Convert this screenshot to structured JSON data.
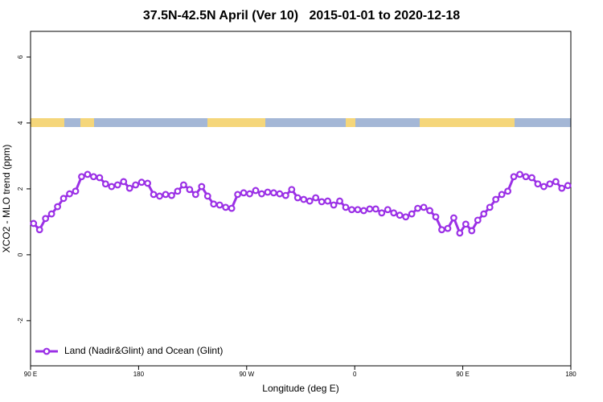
{
  "chart_data": {
    "type": "line",
    "title": "37.5N-42.5N April (Ver 10)   2015-01-01 to 2020-12-18",
    "x_label": "Longitude (deg E)",
    "y_label": "XCO2 - MLO trend (ppm)",
    "x": [
      92.5,
      97.5,
      102.5,
      107.5,
      112.5,
      117.5,
      122.5,
      127.5,
      132.5,
      137.5,
      142.5,
      147.5,
      152.5,
      157.5,
      162.5,
      167.5,
      172.5,
      177.5,
      182.5,
      187.5,
      192.5,
      197.5,
      202.5,
      207.5,
      212.5,
      217.5,
      222.5,
      227.5,
      232.5,
      237.5,
      242.5,
      247.5,
      252.5,
      257.5,
      262.5,
      267.5,
      272.5,
      277.5,
      282.5,
      287.5,
      292.5,
      297.5,
      302.5,
      307.5,
      312.5,
      317.5,
      322.5,
      327.5,
      332.5,
      337.5,
      342.5,
      347.5,
      352.5,
      357.5,
      362.5,
      367.5,
      372.5,
      377.5,
      382.5,
      387.5,
      392.5,
      397.5,
      402.5,
      407.5,
      412.5,
      417.5,
      422.5,
      427.5,
      432.5,
      437.5,
      442.5,
      447.5,
      452.5,
      457.5,
      462.5,
      467.5,
      472.5,
      477.5,
      482.5,
      487.5,
      492.5,
      497.5,
      502.5,
      507.5,
      512.5,
      517.5,
      522.5,
      527.5,
      532.5,
      537.5
    ],
    "series": [
      {
        "name": "Land (Nadir&Glint) and Ocean (Glint)",
        "color": "#9b30e6",
        "values": [
          0.95,
          0.76,
          1.1,
          1.24,
          1.46,
          1.71,
          1.85,
          1.93,
          2.37,
          2.44,
          2.37,
          2.34,
          2.15,
          2.07,
          2.12,
          2.22,
          2.02,
          2.12,
          2.2,
          2.17,
          1.83,
          1.78,
          1.83,
          1.8,
          1.93,
          2.12,
          1.98,
          1.83,
          2.07,
          1.78,
          1.54,
          1.51,
          1.44,
          1.41,
          1.83,
          1.88,
          1.85,
          1.95,
          1.85,
          1.9,
          1.88,
          1.85,
          1.8,
          1.98,
          1.73,
          1.68,
          1.63,
          1.73,
          1.61,
          1.63,
          1.51,
          1.63,
          1.44,
          1.37,
          1.37,
          1.34,
          1.39,
          1.39,
          1.27,
          1.37,
          1.27,
          1.2,
          1.15,
          1.24,
          1.41,
          1.44,
          1.34,
          1.15,
          0.76,
          0.8,
          1.12,
          0.66,
          0.93,
          0.73,
          1.05,
          1.24,
          1.44,
          1.68,
          1.83,
          1.93,
          2.37,
          2.44,
          2.37,
          2.34,
          2.15,
          2.07,
          2.15,
          2.22,
          2.02,
          2.1
        ]
      }
    ],
    "xlim": [
      90,
      540
    ],
    "xticks": [
      {
        "value": 90,
        "label": "90 E"
      },
      180,
      {
        "value": 270,
        "label": "90 W"
      },
      {
        "value": 360,
        "label": "0"
      },
      {
        "value": 450,
        "label": "90 E"
      },
      {
        "value": 540,
        "label": "180"
      }
    ],
    "ylim": [
      -3.37,
      6.78
    ],
    "yticks": [
      -2,
      0,
      2,
      4,
      6
    ],
    "legend": "lower left"
  }
}
